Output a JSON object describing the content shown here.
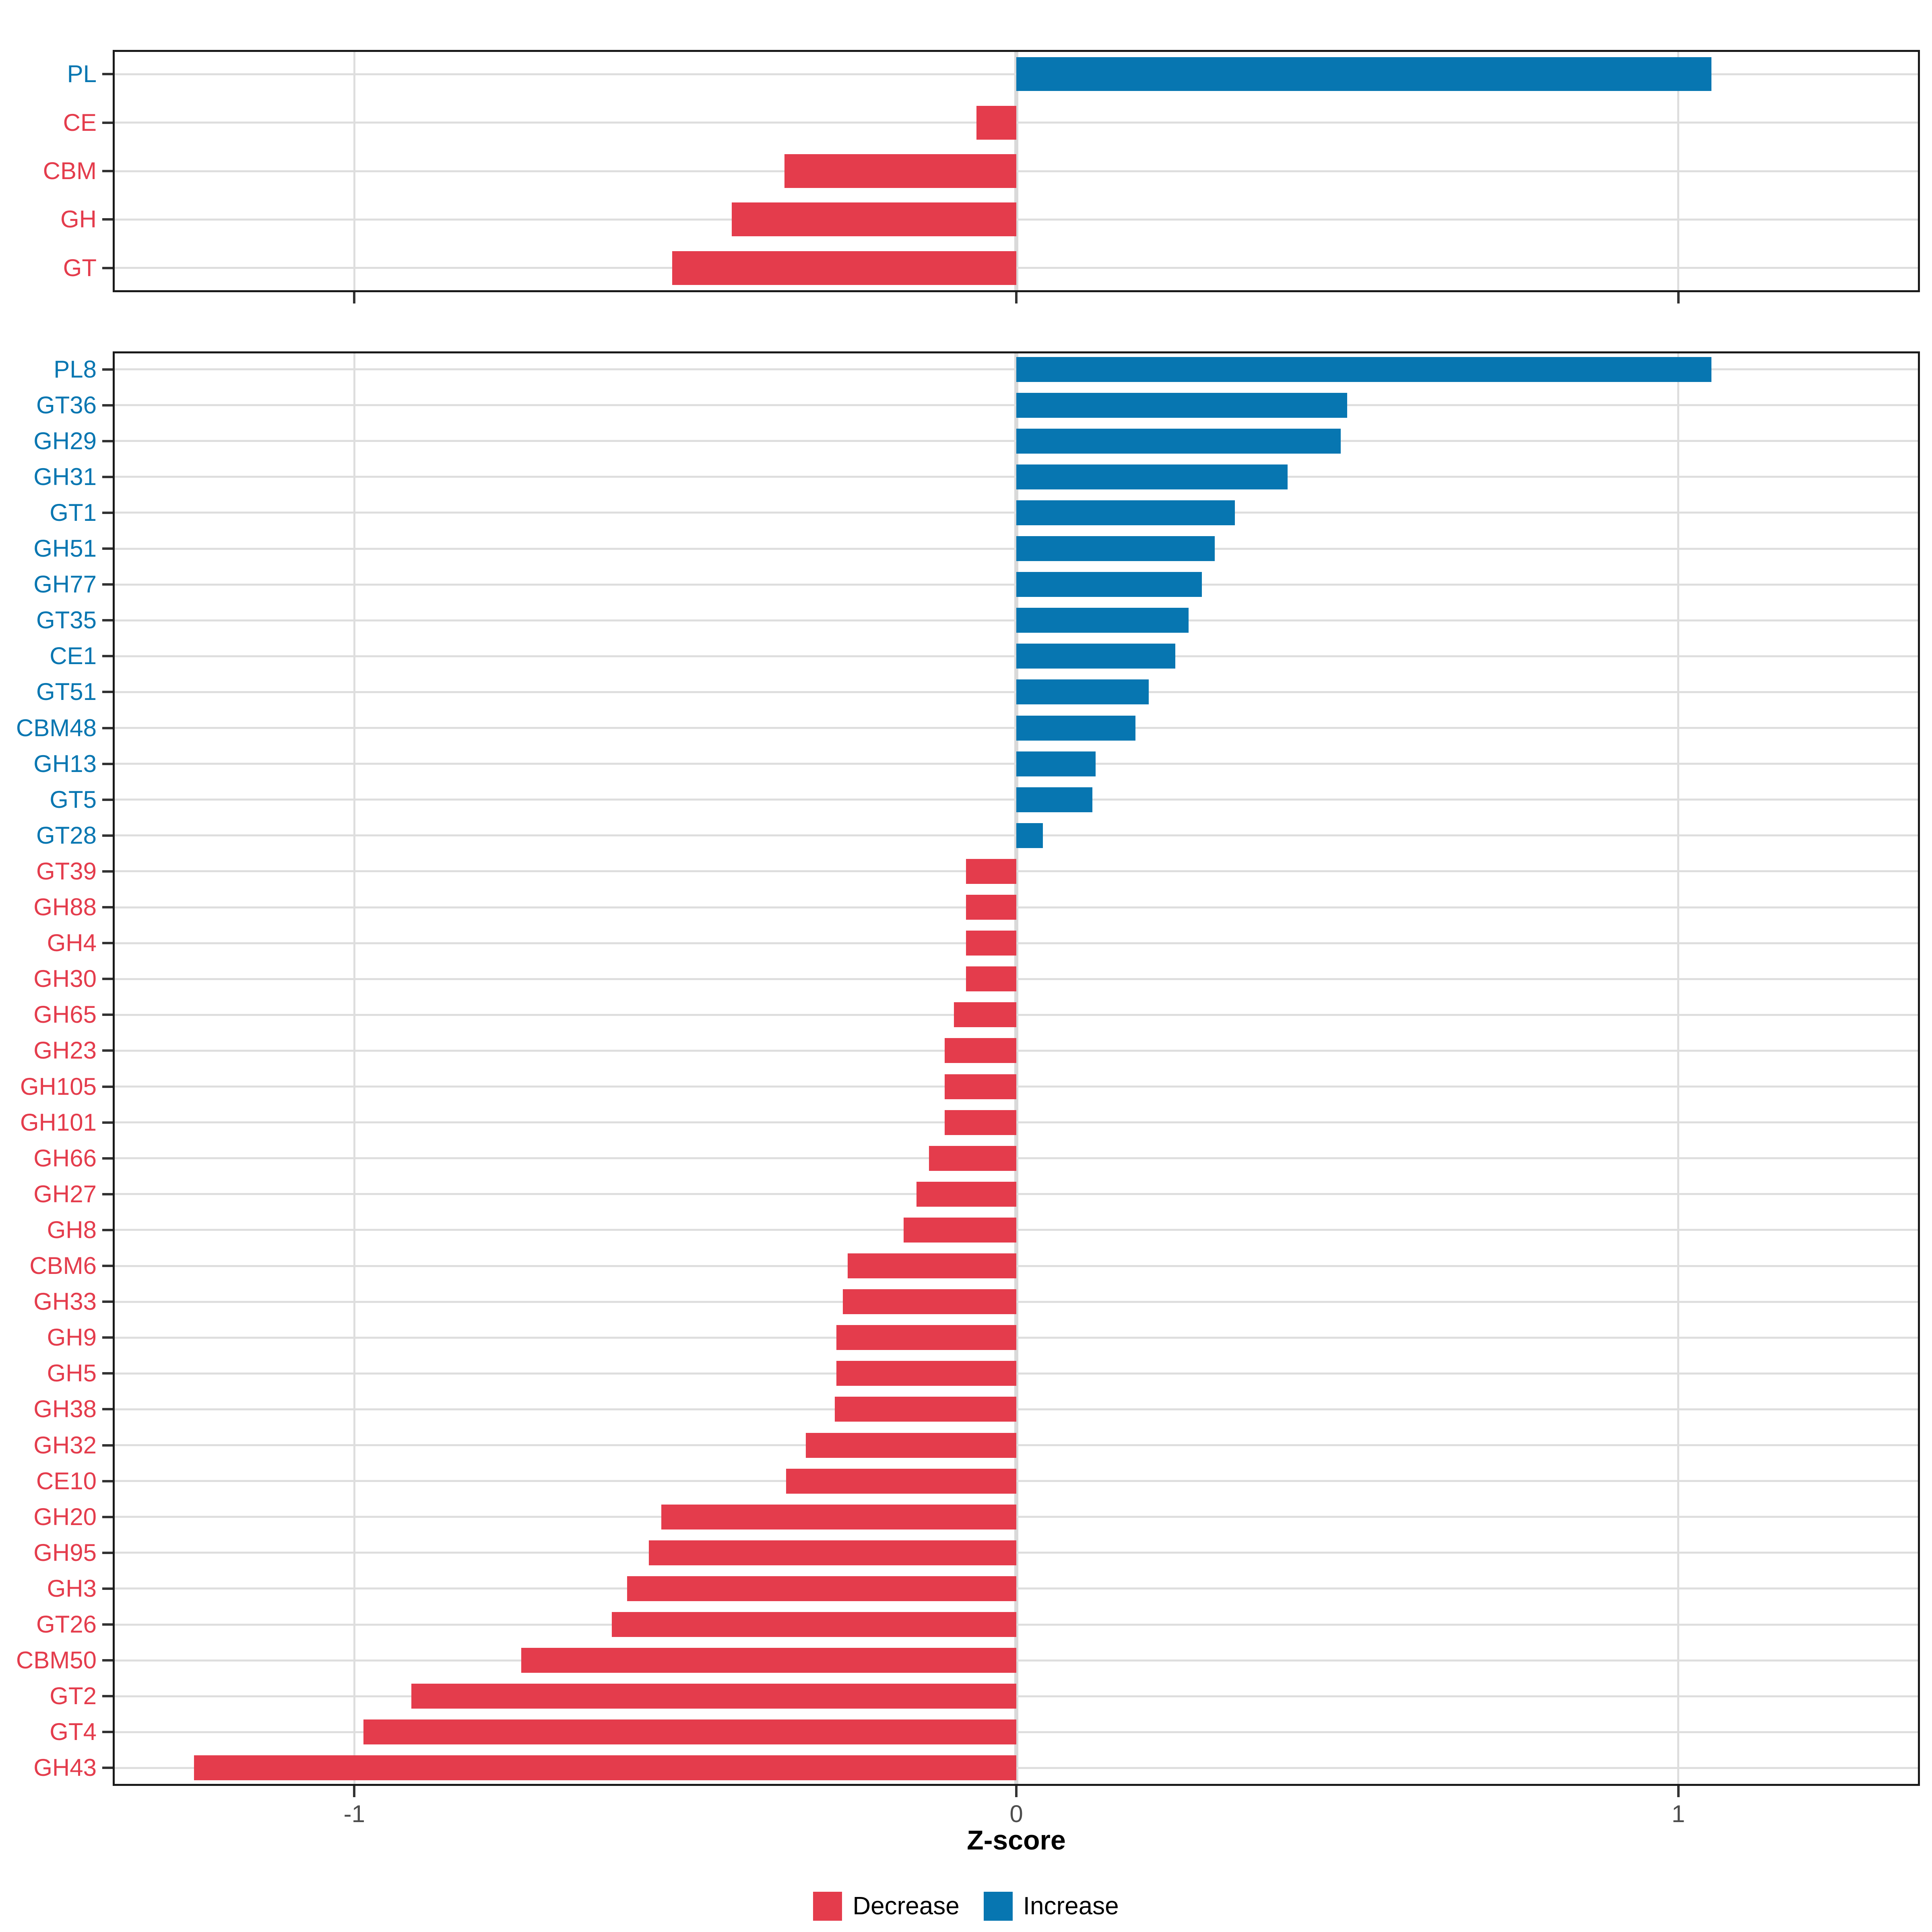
{
  "figure": {
    "xlabel": "Z-score",
    "background": "#ffffff"
  },
  "axis": {
    "tick_values": [
      -1,
      0,
      1
    ],
    "tick_labels": [
      "-1",
      "0",
      "1"
    ],
    "xlim": [
      -1.365,
      1.365
    ]
  },
  "colors": {
    "increase": "#0776b1",
    "decrease": "#e43c4c",
    "grid": "#dedede",
    "zero_grid": "#d9d9d9",
    "panel_border": "#1a1a1a",
    "tick_mark": "#333333",
    "tick_label_text": "#4d4d4d"
  },
  "legend": {
    "items": [
      {
        "key": "decrease",
        "label": "Decrease",
        "color": "#e43c4c"
      },
      {
        "key": "increase",
        "label": "Increase",
        "color": "#0776b1"
      }
    ]
  },
  "chart_data": [
    {
      "id": "cazyme-class-panel",
      "type": "bar",
      "orientation": "horizontal",
      "title": "",
      "xlabel": "Z-score",
      "ylabel": "",
      "xlim": [
        -1.365,
        1.365
      ],
      "grid": true,
      "color_rule": "sign (negative=Decrease red, positive=Increase blue)",
      "categories": [
        "PL",
        "CE",
        "CBM",
        "GH",
        "GT"
      ],
      "values": [
        1.05,
        -0.06,
        -0.35,
        -0.43,
        -0.52
      ]
    },
    {
      "id": "cazyme-family-panel",
      "type": "bar",
      "orientation": "horizontal",
      "title": "",
      "xlabel": "Z-score",
      "ylabel": "",
      "xlim": [
        -1.365,
        1.365
      ],
      "grid": true,
      "color_rule": "sign (negative=Decrease red, positive=Increase blue)",
      "categories": [
        "PL8",
        "GT36",
        "GH29",
        "GH31",
        "GT1",
        "GH51",
        "GH77",
        "GT35",
        "CE1",
        "GT51",
        "CBM48",
        "GH13",
        "GT5",
        "GT28",
        "GT39",
        "GH88",
        "GH4",
        "GH30",
        "GH65",
        "GH23",
        "GH105",
        "GH101",
        "GH66",
        "GH27",
        "GH8",
        "CBM6",
        "GH33",
        "GH9",
        "GH5",
        "GH38",
        "GH32",
        "CE10",
        "GH20",
        "GH95",
        "GH3",
        "GT26",
        "CBM50",
        "GT2",
        "GT4",
        "GH43"
      ],
      "values": [
        1.05,
        0.5,
        0.49,
        0.41,
        0.33,
        0.3,
        0.28,
        0.26,
        0.24,
        0.2,
        0.18,
        0.12,
        0.115,
        0.04,
        -0.076,
        -0.076,
        -0.076,
        -0.076,
        -0.094,
        -0.108,
        -0.108,
        -0.108,
        -0.132,
        -0.151,
        -0.17,
        -0.255,
        -0.262,
        -0.272,
        -0.272,
        -0.274,
        -0.318,
        -0.348,
        -0.536,
        -0.555,
        -0.588,
        -0.611,
        -0.748,
        -0.914,
        -0.986,
        -1.242
      ]
    }
  ]
}
